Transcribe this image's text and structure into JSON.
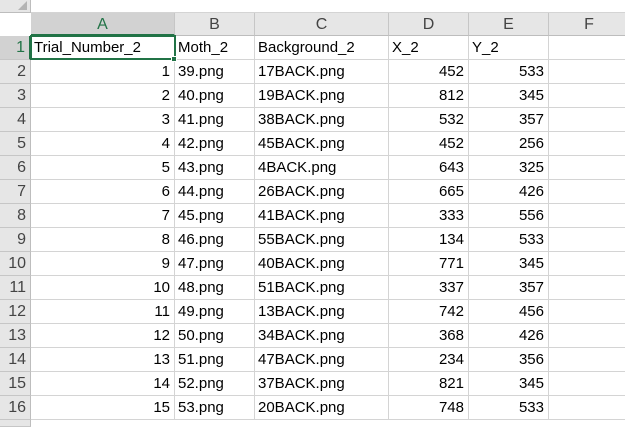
{
  "columns": [
    "A",
    "B",
    "C",
    "D",
    "E",
    "F"
  ],
  "rows": [
    [
      "Trial_Number_2",
      "Moth_2",
      "Background_2",
      "X_2",
      "Y_2",
      ""
    ],
    [
      "1",
      "39.png",
      "17BACK.png",
      "452",
      "533",
      ""
    ],
    [
      "2",
      "40.png",
      "19BACK.png",
      "812",
      "345",
      ""
    ],
    [
      "3",
      "41.png",
      "38BACK.png",
      "532",
      "357",
      ""
    ],
    [
      "4",
      "42.png",
      "45BACK.png",
      "452",
      "256",
      ""
    ],
    [
      "5",
      "43.png",
      "4BACK.png",
      "643",
      "325",
      ""
    ],
    [
      "6",
      "44.png",
      "26BACK.png",
      "665",
      "426",
      ""
    ],
    [
      "7",
      "45.png",
      "41BACK.png",
      "333",
      "556",
      ""
    ],
    [
      "8",
      "46.png",
      "55BACK.png",
      "134",
      "533",
      ""
    ],
    [
      "9",
      "47.png",
      "40BACK.png",
      "771",
      "345",
      ""
    ],
    [
      "10",
      "48.png",
      "51BACK.png",
      "337",
      "357",
      ""
    ],
    [
      "11",
      "49.png",
      "13BACK.png",
      "742",
      "456",
      ""
    ],
    [
      "12",
      "50.png",
      "34BACK.png",
      "368",
      "426",
      ""
    ],
    [
      "13",
      "51.png",
      "47BACK.png",
      "234",
      "356",
      ""
    ],
    [
      "14",
      "52.png",
      "37BACK.png",
      "821",
      "345",
      ""
    ],
    [
      "15",
      "53.png",
      "20BACK.png",
      "748",
      "533",
      ""
    ]
  ],
  "row_numbers": [
    "1",
    "2",
    "3",
    "4",
    "5",
    "6",
    "7",
    "8",
    "9",
    "10",
    "11",
    "12",
    "13",
    "14",
    "15",
    "16"
  ],
  "active_cell": "A1",
  "colors": {
    "accent": "#217346",
    "header_bg": "#e6e6e6",
    "gridline": "#d4d4d4"
  }
}
